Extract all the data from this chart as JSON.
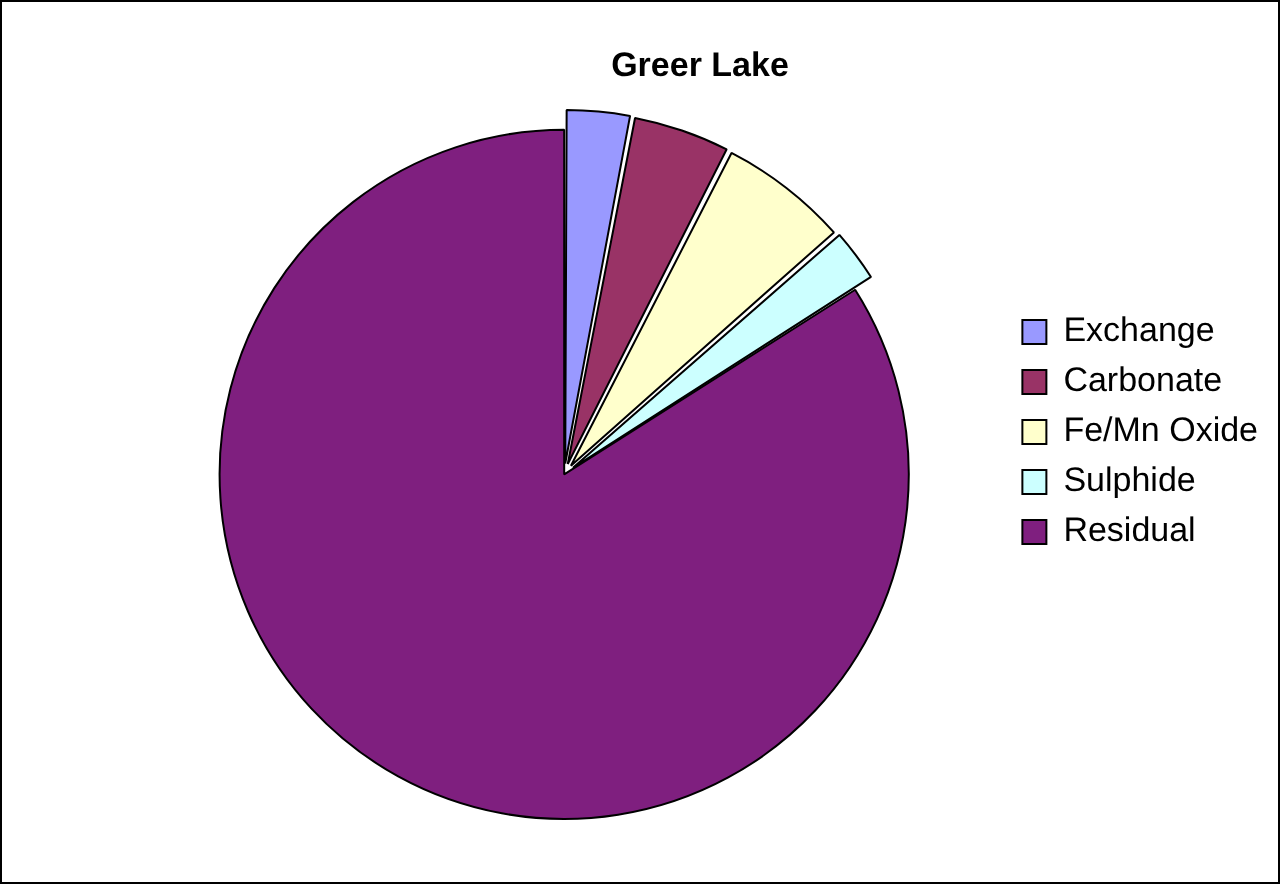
{
  "chart_data": {
    "type": "pie",
    "title": "Greer Lake",
    "categories": [
      "Exchange",
      "Carbonate",
      "Fe/Mn Oxide",
      "Sulphide",
      "Residual"
    ],
    "values": [
      3,
      4.5,
      6,
      2.5,
      84
    ],
    "colors": [
      "#9999ff",
      "#993366",
      "#ffffcc",
      "#ccffff",
      "#7f1f7f"
    ],
    "legend": "right"
  }
}
